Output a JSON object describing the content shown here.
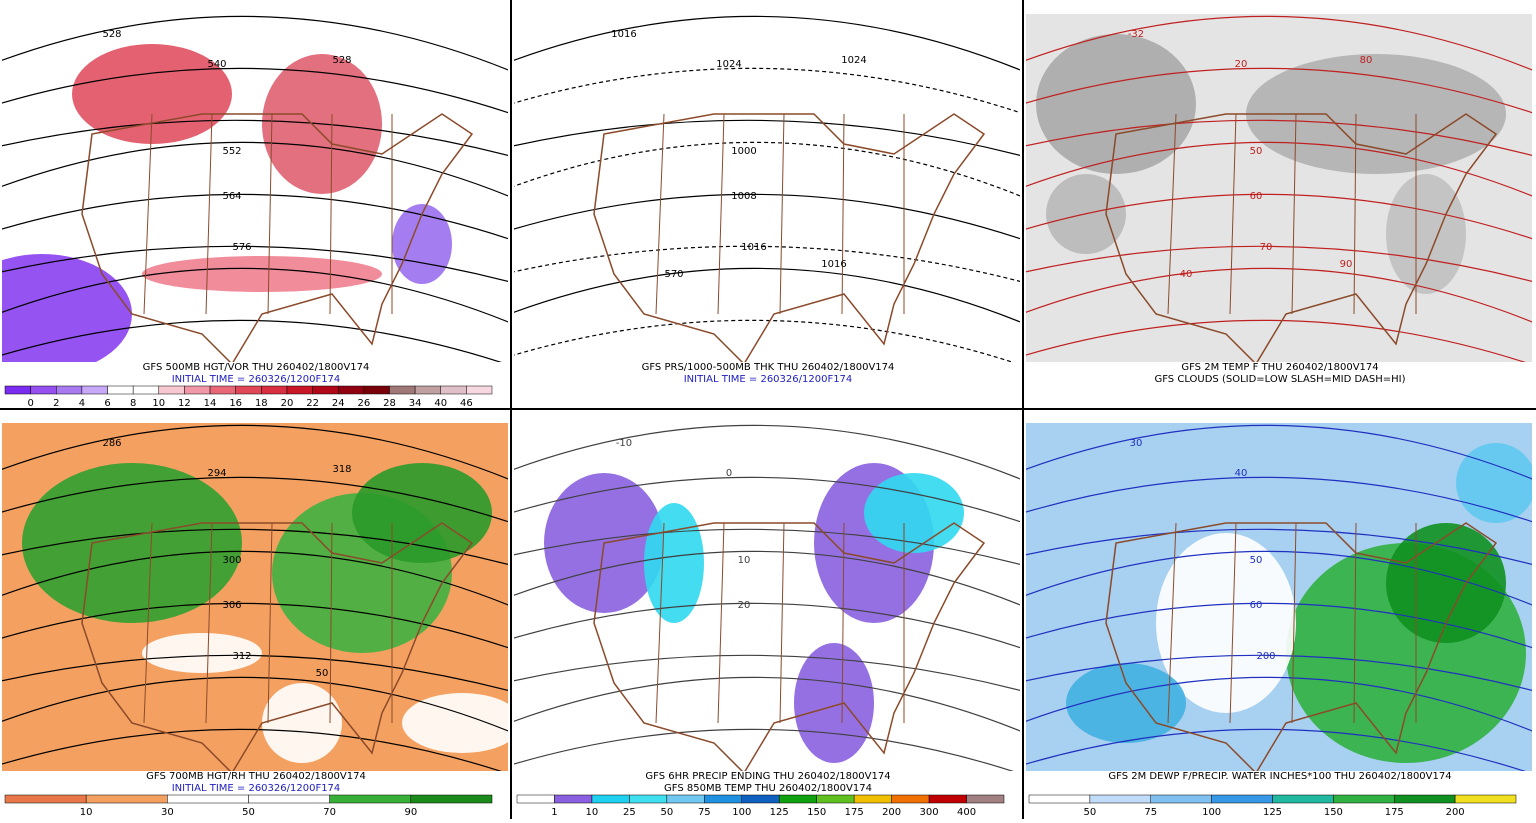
{
  "panels": [
    {
      "title": "GFS 500MB HGT/VOR THU 260402/1800V174",
      "subtitle": "INITIAL TIME = 260326/1200F174",
      "subtitle_color": "#2020c0",
      "background": "#ffffff",
      "map_labels": [
        "528",
        "540",
        "552",
        "564",
        "576",
        "528"
      ],
      "legend": {
        "labels": [
          "0",
          "2",
          "4",
          "6",
          "8",
          "10",
          "12",
          "14",
          "16",
          "18",
          "20",
          "22",
          "24",
          "26",
          "28",
          "34",
          "40",
          "46"
        ],
        "colors": [
          "#7a2cf0",
          "#9650f0",
          "#a87af0",
          "#c8a8f8",
          "#ffffff",
          "#ffffff",
          "#f8c8d0",
          "#f098a8",
          "#e86878",
          "#e04858",
          "#d83040",
          "#c81828",
          "#b00818",
          "#900010",
          "#780008",
          "#a07878",
          "#c0a0a0",
          "#e0c0c8",
          "#f8d8e0"
        ]
      }
    },
    {
      "title": "GFS PRS/1000-500MB THK THU 260402/1800V174",
      "subtitle": "INITIAL TIME = 260326/1200F174",
      "subtitle_color": "#2020c0",
      "background": "#ffffff",
      "map_labels": [
        "1016",
        "1024",
        "1000",
        "1008",
        "1016",
        "1024",
        "1016",
        "570"
      ]
    },
    {
      "title": "GFS 2M TEMP F THU 260402/1800V174",
      "subtitle": "GFS CLOUDS (SOLID=LOW SLASH=MID DASH=HI)",
      "subtitle_color": "#000000",
      "background": "#e4e4e4",
      "map_labels": [
        "-32",
        "20",
        "50",
        "60",
        "70",
        "80",
        "90",
        "40"
      ]
    },
    {
      "title": "GFS 700MB HGT/RH THU 260402/1800V174",
      "subtitle": "INITIAL TIME = 260326/1200F174",
      "subtitle_color": "#2020c0",
      "background": "#f4a060",
      "map_labels": [
        "286",
        "294",
        "300",
        "306",
        "312",
        "318",
        "50"
      ],
      "legend": {
        "labels": [
          "10",
          "30",
          "50",
          "70",
          "90"
        ],
        "colors": [
          "#e8784a",
          "#f4a060",
          "#ffffff",
          "#ffffff",
          "#38b038",
          "#1a8a1a"
        ]
      }
    },
    {
      "title": "GFS 6HR PRECIP ENDING THU 260402/1800V174",
      "subtitle": "GFS 850MB TEMP THU 260402/1800V174",
      "subtitle_color": "#000000",
      "background": "#ffffff",
      "map_labels": [
        "-10",
        "0",
        "10",
        "20"
      ],
      "legend": {
        "labels": [
          "1",
          "10",
          "25",
          "50",
          "75",
          "100",
          "125",
          "150",
          "175",
          "200",
          "300",
          "400"
        ],
        "colors": [
          "#ffffff",
          "#8a60e0",
          "#20d0f0",
          "#40e0f0",
          "#70c8f0",
          "#2090e0",
          "#1060c0",
          "#10a010",
          "#60c020",
          "#f0c000",
          "#f07000",
          "#c00000",
          "#a08080"
        ]
      }
    },
    {
      "title": "GFS 2M DEWP F/PRECIP. WATER INCHES*100 THU 260402/1800V174",
      "background": "#a8d0f0",
      "map_labels": [
        "30",
        "40",
        "50",
        "60",
        "200"
      ],
      "legend": {
        "labels": [
          "50",
          "75",
          "100",
          "125",
          "150",
          "175",
          "200"
        ],
        "colors": [
          "#ffffff",
          "#c0dcf8",
          "#80c0f0",
          "#3898e8",
          "#20b8a0",
          "#30b040",
          "#109020",
          "#f0e020"
        ]
      }
    }
  ]
}
